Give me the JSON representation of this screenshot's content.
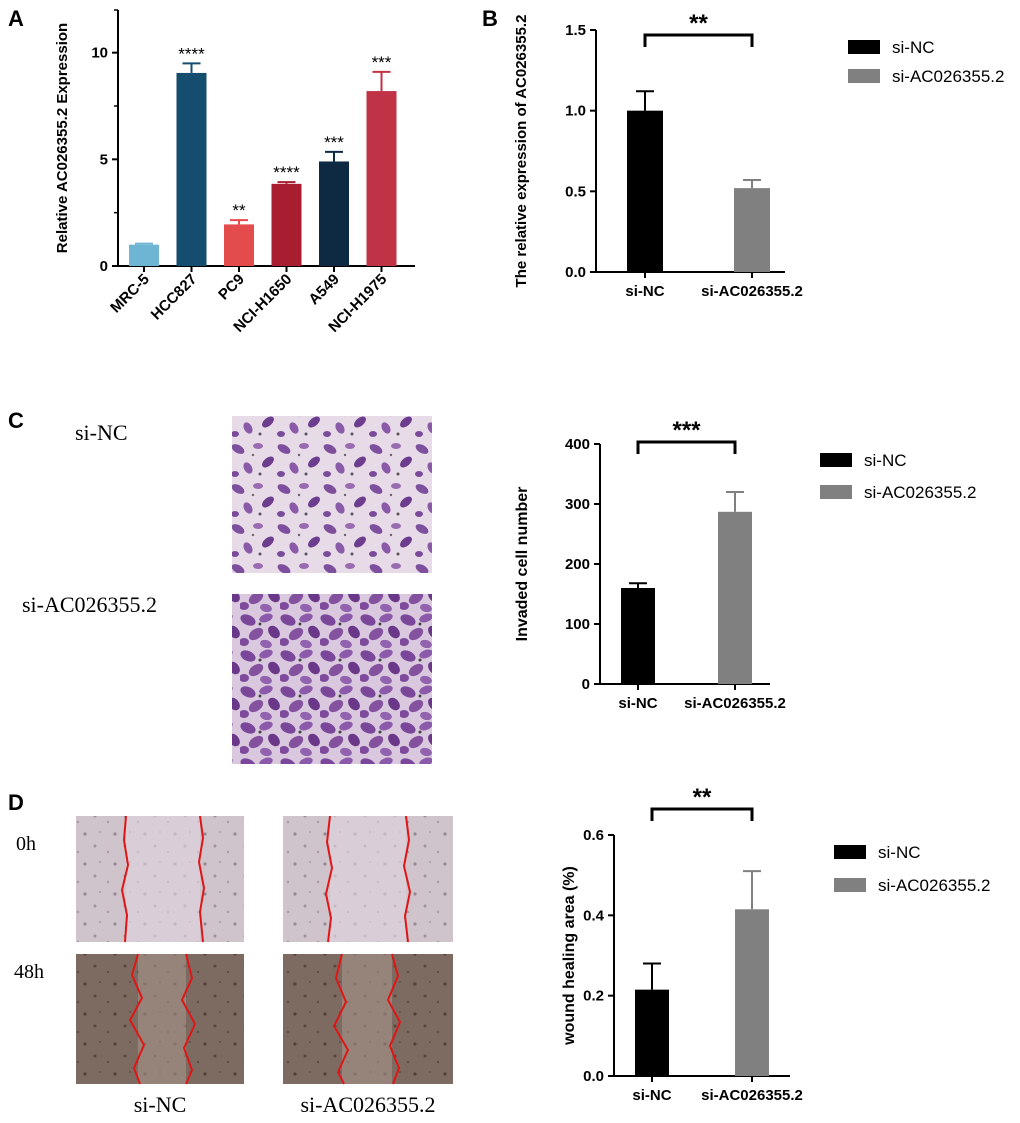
{
  "panels": {
    "A": {
      "letter": "A"
    },
    "B": {
      "letter": "B"
    },
    "C": {
      "letter": "C",
      "image_labels": [
        "si-NC",
        "si-AC026355.2"
      ]
    },
    "D": {
      "letter": "D",
      "time_labels": [
        "0h",
        "48h"
      ],
      "col_labels": [
        "si-NC",
        "si-AC026355.2"
      ]
    }
  },
  "chart_data": [
    {
      "id": "A",
      "type": "bar",
      "categories": [
        "MRC-5",
        "HCC827",
        "PC9",
        "NCI-H1650",
        "A549",
        "NCI-H1975"
      ],
      "values": [
        1.0,
        9.05,
        1.95,
        3.85,
        4.9,
        8.2
      ],
      "errors": [
        0.05,
        0.45,
        0.2,
        0.08,
        0.45,
        0.9
      ],
      "significance": [
        "",
        "****",
        "**",
        "****",
        "***",
        "***"
      ],
      "colors": [
        "#6eb5d3",
        "#154d6e",
        "#e34b4c",
        "#a81d30",
        "#0e2a43",
        "#c03245"
      ],
      "ylabel": "Relative AC026355.2 Expression",
      "ylim": [
        0,
        12
      ],
      "yticks": [
        0,
        5,
        10
      ],
      "legend": "none"
    },
    {
      "id": "B",
      "type": "bar",
      "categories": [
        "si-NC",
        "si-AC026355.2"
      ],
      "values": [
        1.0,
        0.52
      ],
      "errors": [
        0.12,
        0.05
      ],
      "colors": [
        "#000000",
        "#808080"
      ],
      "ylabel": "The relative expression of AC026355.2",
      "ylim": [
        0,
        1.5
      ],
      "yticks": [
        "0.0",
        "0.5",
        "1.0",
        "1.5"
      ],
      "significance": "**",
      "legend": {
        "position": "right",
        "entries": [
          "si-NC",
          "si-AC026355.2"
        ]
      }
    },
    {
      "id": "C",
      "type": "bar",
      "categories": [
        "si-NC",
        "si-AC026355.2"
      ],
      "values": [
        160,
        287
      ],
      "errors": [
        8,
        33
      ],
      "colors": [
        "#000000",
        "#808080"
      ],
      "ylabel": "Invaded cell number",
      "ylim": [
        0,
        400
      ],
      "yticks": [
        "0",
        "100",
        "200",
        "300",
        "400"
      ],
      "significance": "***",
      "legend": {
        "position": "right",
        "entries": [
          "si-NC",
          "si-AC026355.2"
        ]
      }
    },
    {
      "id": "D",
      "type": "bar",
      "categories": [
        "si-NC",
        "si-AC026355.2"
      ],
      "values": [
        0.215,
        0.415
      ],
      "errors": [
        0.065,
        0.095
      ],
      "colors": [
        "#000000",
        "#808080"
      ],
      "ylabel": "wound healing area (%)",
      "ylim": [
        0,
        0.6
      ],
      "yticks": [
        "0.0",
        "0.2",
        "0.4",
        "0.6"
      ],
      "significance": "**",
      "legend": {
        "position": "right",
        "entries": [
          "si-NC",
          "si-AC026355.2"
        ]
      }
    }
  ]
}
